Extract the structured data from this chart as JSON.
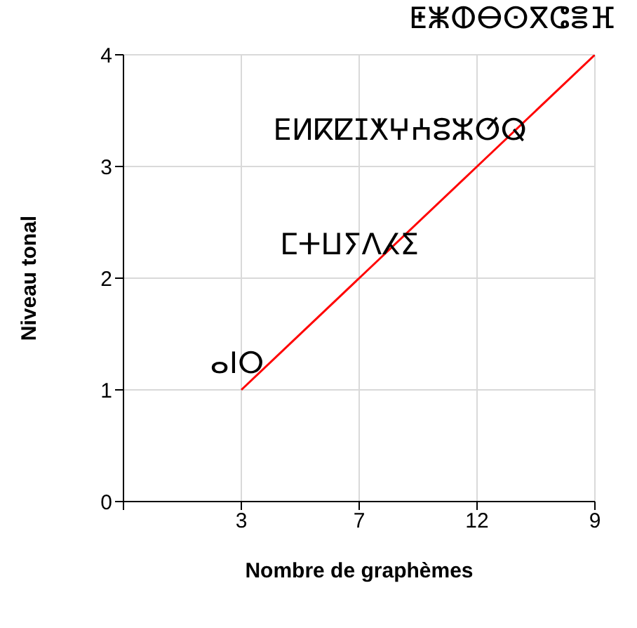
{
  "chart_data": {
    "type": "line",
    "xlabel": "Nombre de graphèmes",
    "ylabel": "Niveau tonal",
    "categories": [
      null,
      "3",
      "7",
      "12",
      "9"
    ],
    "series": [
      {
        "color": "#ff0000",
        "values": [
          null,
          1,
          2,
          3,
          4
        ]
      }
    ],
    "ylim": [
      0,
      4
    ],
    "yticks": [
      0,
      1,
      2,
      3,
      4
    ],
    "grid": true,
    "marker": "none",
    "annotations": [
      "ⴰⵏⵔ",
      "ⵎⵜⵡⵢⴷⵃⵉ",
      "ⴹⵍⴽⵇⵊⵅⵖⵄⵓⵣⵚⵕ",
      "ⵟⵥⵀⴱⵙⴳⵛⴻⴼ"
    ]
  }
}
